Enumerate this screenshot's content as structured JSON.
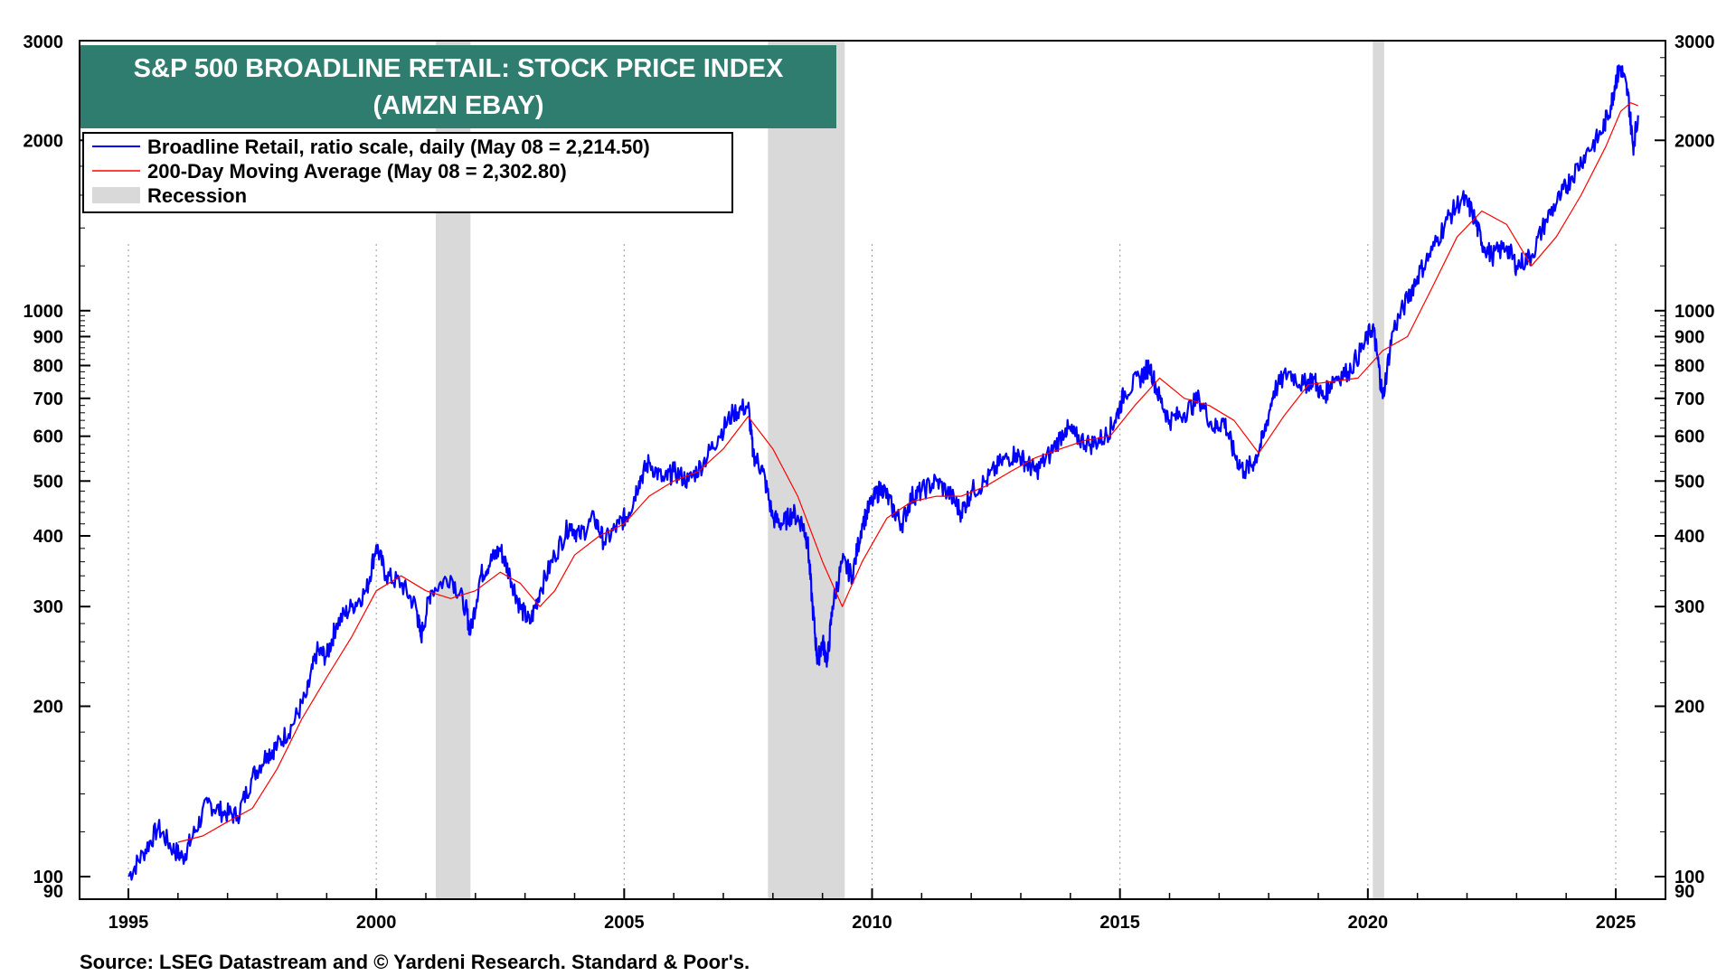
{
  "chart_data": {
    "type": "line",
    "title_line1": "S&P 500 BROADLINE RETAIL: STOCK PRICE INDEX",
    "title_line2": "(AMZN EBAY)",
    "scale": "log",
    "ylim": [
      90,
      3000
    ],
    "xlim": [
      1994.0,
      2026.0
    ],
    "x_ticks": [
      1995,
      2000,
      2005,
      2010,
      2015,
      2020,
      2025
    ],
    "y_ticks": [
      90,
      100,
      200,
      300,
      400,
      500,
      600,
      700,
      800,
      900,
      1000,
      2000,
      3000
    ],
    "legend": {
      "series_label": "Broadline Retail, ratio scale, daily (May 08 = 2,214.50)",
      "ma_label": "200-Day Moving Average (May 08 = 2,302.80)",
      "recession_label": "Recession"
    },
    "recessions": [
      [
        2001.2,
        2001.9
      ],
      [
        2007.9,
        2009.45
      ],
      [
        2020.1,
        2020.33
      ]
    ],
    "series": [
      {
        "name": "Broadline Retail",
        "color": "#0000ff",
        "points": [
          [
            1995.0,
            100
          ],
          [
            1995.3,
            110
          ],
          [
            1995.6,
            122
          ],
          [
            1995.9,
            112
          ],
          [
            1996.1,
            108
          ],
          [
            1996.3,
            118
          ],
          [
            1996.6,
            135
          ],
          [
            1996.9,
            130
          ],
          [
            1997.2,
            128
          ],
          [
            1997.5,
            150
          ],
          [
            1997.8,
            165
          ],
          [
            1998.0,
            170
          ],
          [
            1998.3,
            185
          ],
          [
            1998.6,
            210
          ],
          [
            1998.8,
            250
          ],
          [
            1999.0,
            245
          ],
          [
            1999.2,
            280
          ],
          [
            1999.5,
            300
          ],
          [
            1999.8,
            320
          ],
          [
            2000.0,
            385
          ],
          [
            2000.2,
            340
          ],
          [
            2000.5,
            330
          ],
          [
            2000.8,
            300
          ],
          [
            2000.9,
            265
          ],
          [
            2001.1,
            320
          ],
          [
            2001.5,
            340
          ],
          [
            2001.8,
            300
          ],
          [
            2001.9,
            270
          ],
          [
            2002.1,
            340
          ],
          [
            2002.3,
            360
          ],
          [
            2002.5,
            380
          ],
          [
            2002.7,
            340
          ],
          [
            2002.9,
            300
          ],
          [
            2003.1,
            280
          ],
          [
            2003.3,
            320
          ],
          [
            2003.6,
            370
          ],
          [
            2003.9,
            420
          ],
          [
            2004.1,
            400
          ],
          [
            2004.4,
            430
          ],
          [
            2004.6,
            390
          ],
          [
            2004.9,
            420
          ],
          [
            2005.1,
            440
          ],
          [
            2005.3,
            500
          ],
          [
            2005.5,
            540
          ],
          [
            2005.8,
            500
          ],
          [
            2006.0,
            520
          ],
          [
            2006.3,
            500
          ],
          [
            2006.6,
            540
          ],
          [
            2006.9,
            600
          ],
          [
            2007.2,
            660
          ],
          [
            2007.5,
            680
          ],
          [
            2007.6,
            560
          ],
          [
            2007.8,
            520
          ],
          [
            2008.0,
            430
          ],
          [
            2008.2,
            420
          ],
          [
            2008.4,
            440
          ],
          [
            2008.6,
            420
          ],
          [
            2008.7,
            390
          ],
          [
            2008.8,
            300
          ],
          [
            2008.9,
            240
          ],
          [
            2009.0,
            260
          ],
          [
            2009.1,
            240
          ],
          [
            2009.2,
            300
          ],
          [
            2009.4,
            360
          ],
          [
            2009.6,
            340
          ],
          [
            2009.8,
            420
          ],
          [
            2010.0,
            460
          ],
          [
            2010.2,
            490
          ],
          [
            2010.4,
            450
          ],
          [
            2010.6,
            420
          ],
          [
            2010.8,
            470
          ],
          [
            2011.0,
            480
          ],
          [
            2011.3,
            500
          ],
          [
            2011.6,
            470
          ],
          [
            2011.8,
            440
          ],
          [
            2012.0,
            480
          ],
          [
            2012.3,
            500
          ],
          [
            2012.6,
            540
          ],
          [
            2012.9,
            560
          ],
          [
            2013.1,
            540
          ],
          [
            2013.3,
            520
          ],
          [
            2013.6,
            560
          ],
          [
            2013.9,
            620
          ],
          [
            2014.1,
            600
          ],
          [
            2014.4,
            580
          ],
          [
            2014.7,
            600
          ],
          [
            2014.9,
            640
          ],
          [
            2015.1,
            720
          ],
          [
            2015.4,
            760
          ],
          [
            2015.6,
            800
          ],
          [
            2015.8,
            700
          ],
          [
            2016.0,
            640
          ],
          [
            2016.3,
            660
          ],
          [
            2016.6,
            700
          ],
          [
            2016.9,
            620
          ],
          [
            2017.1,
            640
          ],
          [
            2017.3,
            560
          ],
          [
            2017.5,
            520
          ],
          [
            2017.7,
            540
          ],
          [
            2017.9,
            600
          ],
          [
            2018.1,
            720
          ],
          [
            2018.4,
            780
          ],
          [
            2018.7,
            740
          ],
          [
            2018.9,
            760
          ],
          [
            2019.1,
            700
          ],
          [
            2019.3,
            760
          ],
          [
            2019.6,
            780
          ],
          [
            2019.9,
            860
          ],
          [
            2020.1,
            940
          ],
          [
            2020.2,
            820
          ],
          [
            2020.3,
            700
          ],
          [
            2020.5,
            920
          ],
          [
            2020.8,
            1050
          ],
          [
            2021.0,
            1150
          ],
          [
            2021.3,
            1280
          ],
          [
            2021.6,
            1450
          ],
          [
            2021.9,
            1580
          ],
          [
            2022.1,
            1500
          ],
          [
            2022.3,
            1320
          ],
          [
            2022.5,
            1250
          ],
          [
            2022.8,
            1300
          ],
          [
            2023.0,
            1200
          ],
          [
            2023.3,
            1250
          ],
          [
            2023.6,
            1450
          ],
          [
            2023.9,
            1600
          ],
          [
            2024.1,
            1720
          ],
          [
            2024.4,
            1900
          ],
          [
            2024.7,
            2050
          ],
          [
            2024.9,
            2300
          ],
          [
            2025.0,
            2550
          ],
          [
            2025.1,
            2700
          ],
          [
            2025.25,
            2400
          ],
          [
            2025.35,
            1950
          ],
          [
            2025.45,
            2214.5
          ]
        ]
      },
      {
        "name": "200-Day Moving Average",
        "color": "#ff0000",
        "points": [
          [
            1996.0,
            115
          ],
          [
            1996.5,
            118
          ],
          [
            1997.0,
            125
          ],
          [
            1997.5,
            132
          ],
          [
            1998.0,
            155
          ],
          [
            1998.5,
            190
          ],
          [
            1999.0,
            225
          ],
          [
            1999.5,
            265
          ],
          [
            2000.0,
            320
          ],
          [
            2000.5,
            340
          ],
          [
            2001.0,
            320
          ],
          [
            2001.5,
            310
          ],
          [
            2002.0,
            320
          ],
          [
            2002.5,
            345
          ],
          [
            2002.9,
            330
          ],
          [
            2003.3,
            300
          ],
          [
            2003.6,
            320
          ],
          [
            2004.0,
            370
          ],
          [
            2004.5,
            400
          ],
          [
            2005.0,
            420
          ],
          [
            2005.5,
            470
          ],
          [
            2006.0,
            500
          ],
          [
            2006.5,
            520
          ],
          [
            2007.0,
            570
          ],
          [
            2007.5,
            650
          ],
          [
            2008.0,
            570
          ],
          [
            2008.5,
            470
          ],
          [
            2009.0,
            360
          ],
          [
            2009.4,
            300
          ],
          [
            2009.8,
            360
          ],
          [
            2010.3,
            430
          ],
          [
            2010.8,
            460
          ],
          [
            2011.3,
            470
          ],
          [
            2011.8,
            470
          ],
          [
            2012.3,
            490
          ],
          [
            2012.8,
            520
          ],
          [
            2013.3,
            550
          ],
          [
            2013.8,
            570
          ],
          [
            2014.3,
            590
          ],
          [
            2014.8,
            600
          ],
          [
            2015.3,
            680
          ],
          [
            2015.8,
            760
          ],
          [
            2016.3,
            700
          ],
          [
            2016.8,
            680
          ],
          [
            2017.3,
            640
          ],
          [
            2017.8,
            560
          ],
          [
            2018.3,
            650
          ],
          [
            2018.8,
            740
          ],
          [
            2019.3,
            750
          ],
          [
            2019.8,
            760
          ],
          [
            2020.3,
            850
          ],
          [
            2020.8,
            900
          ],
          [
            2021.3,
            1100
          ],
          [
            2021.8,
            1350
          ],
          [
            2022.3,
            1500
          ],
          [
            2022.8,
            1420
          ],
          [
            2023.3,
            1200
          ],
          [
            2023.8,
            1350
          ],
          [
            2024.3,
            1600
          ],
          [
            2024.8,
            1950
          ],
          [
            2025.1,
            2250
          ],
          [
            2025.3,
            2330
          ],
          [
            2025.45,
            2302.8
          ]
        ]
      }
    ]
  },
  "source": "Source: LSEG Datastream and © Yardeni Research. Standard & Poor's.",
  "colors": {
    "title_bg": "#2e7d6e",
    "recession": "#d9d9d9",
    "series": "#0000ff",
    "ma": "#ff0000"
  }
}
